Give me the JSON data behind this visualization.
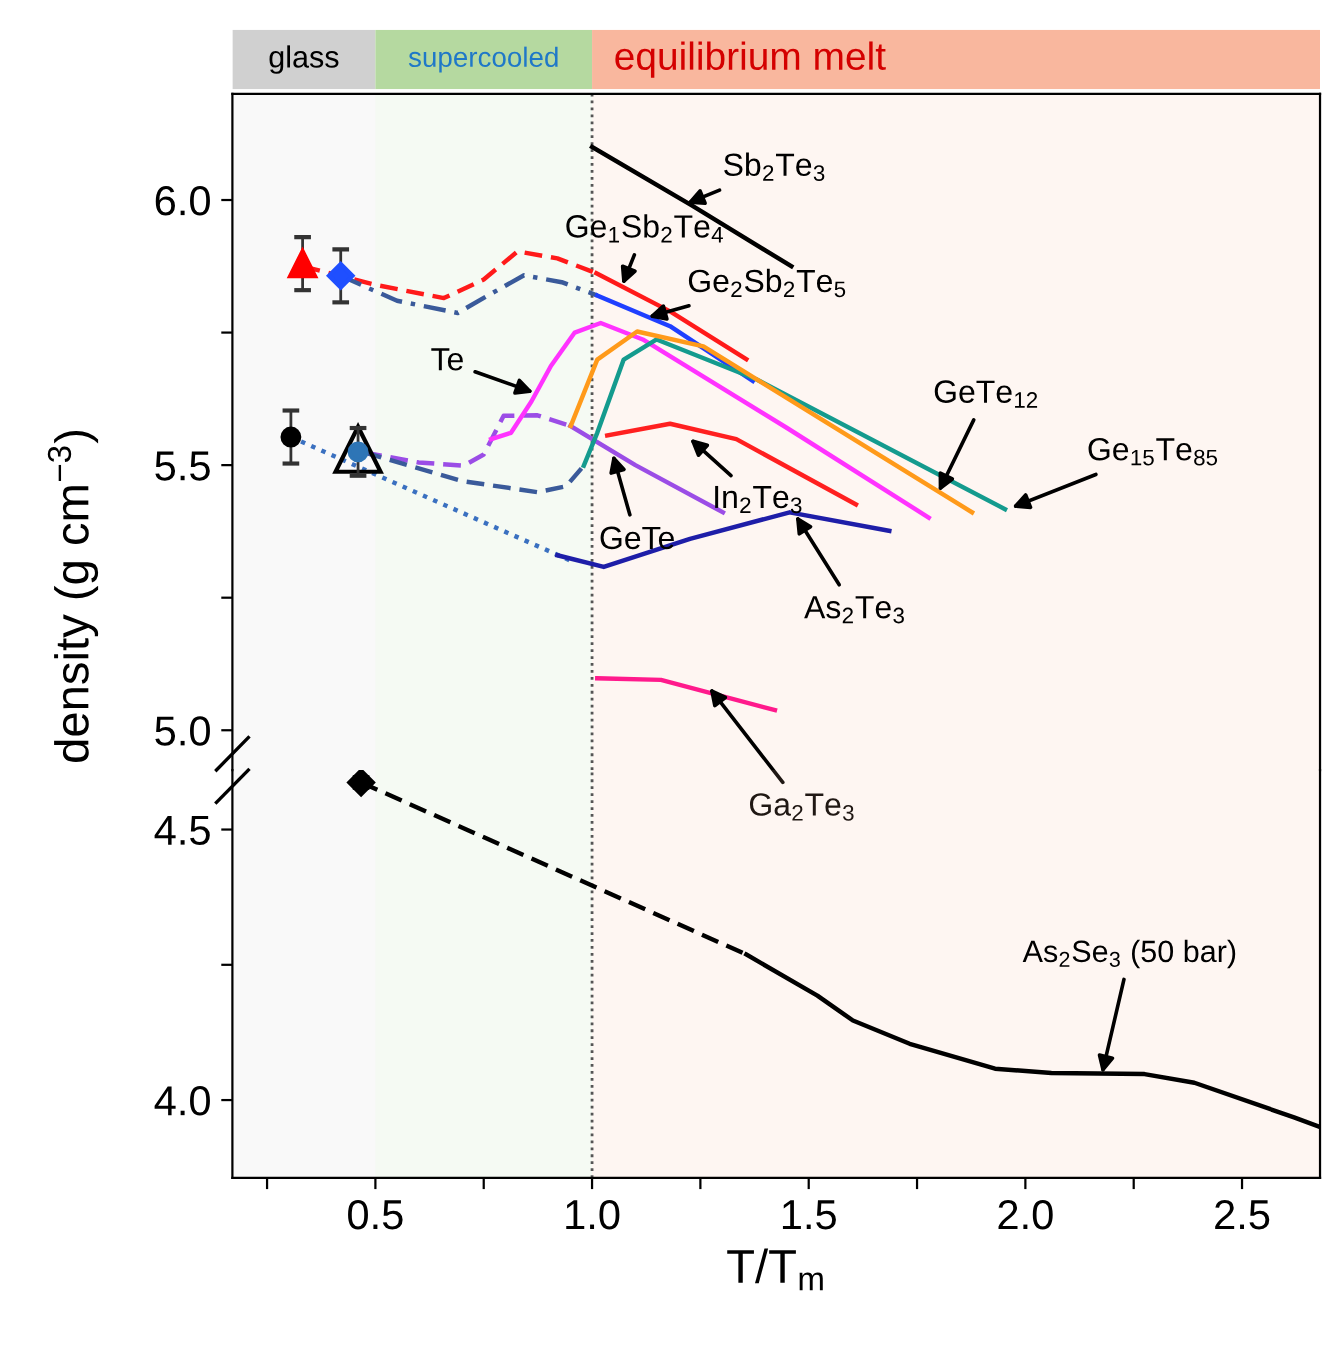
{
  "chart_data": [
    {
      "type": "line",
      "ylabel": "density (g cm$^{−3}$)",
      "xlim": [
        0.17,
        2.68
      ],
      "ylim": [
        4.925,
        6.2
      ],
      "yticks": [
        {
          "value": 5.0,
          "label": "5.0"
        },
        {
          "value": 5.25,
          "label": null
        },
        {
          "value": 5.5,
          "label": "5.5"
        },
        {
          "value": 5.75,
          "label": null
        },
        {
          "value": 6.0,
          "label": "6.0"
        }
      ],
      "tick_labels": "y",
      "grid": false,
      "bands": [
        {
          "axis": "x",
          "from": 0.17,
          "to": 0.5,
          "label": "glass",
          "color": "#d0d0d0"
        },
        {
          "axis": "x",
          "from": 0.5,
          "to": 1.0,
          "label": "supercooled",
          "color": "#b5d9a0"
        },
        {
          "axis": "x",
          "from": 1.0,
          "to": 2.68,
          "label": "equilibrium melt",
          "color": "#f9b79e"
        }
      ],
      "ref_lines": [
        {
          "axis": "x",
          "value": 1.0,
          "color": "#555555",
          "line_style": "dotted"
        }
      ],
      "series": [
        {
          "color": "#000000",
          "x": [
            1.0,
            1.23,
            1.46
          ],
          "values": [
            6.1,
            5.99,
            5.875
          ]
        },
        {
          "color": "#ff1a1a",
          "line_style": "dashed",
          "x": [
            0.332,
            0.5,
            0.658,
            0.75,
            0.828,
            0.92,
            1.01
          ],
          "values": [
            5.875,
            5.84,
            5.815,
            5.85,
            5.903,
            5.89,
            5.862
          ]
        },
        {
          "color": "#ff1a1a",
          "x": [
            1.01,
            1.18,
            1.356
          ],
          "values": [
            5.862,
            5.79,
            5.7
          ]
        },
        {
          "color": "#3a5a9a",
          "line_style": "dashdot",
          "x": [
            0.42,
            0.55,
            0.69,
            0.76,
            0.843,
            0.93,
            1.012
          ],
          "values": [
            5.857,
            5.81,
            5.787,
            5.82,
            5.858,
            5.845,
            5.82
          ]
        },
        {
          "color": "#1f3fff",
          "x": [
            1.012,
            1.18,
            1.371
          ],
          "values": [
            5.82,
            5.762,
            5.659
          ]
        },
        {
          "color": "#9b4de6",
          "line_style": "dashed",
          "x": [
            0.474,
            0.6,
            0.704,
            0.75,
            0.796,
            0.874,
            0.95
          ],
          "values": [
            5.524,
            5.505,
            5.499,
            5.52,
            5.593,
            5.594,
            5.574
          ]
        },
        {
          "color": "#9b4de6",
          "x": [
            0.95,
            1.1,
            1.302
          ],
          "values": [
            5.574,
            5.5,
            5.411
          ]
        },
        {
          "color": "#ff33ff",
          "x": [
            0.767,
            0.813,
            0.86,
            0.905,
            0.96,
            1.02,
            1.117,
            1.45,
            1.777
          ],
          "values": [
            5.549,
            5.561,
            5.62,
            5.687,
            5.75,
            5.768,
            5.737,
            5.57,
            5.401
          ]
        },
        {
          "color": "#3a5a9a",
          "line_style": "dashed",
          "x": [
            0.474,
            0.7,
            0.874,
            0.94,
            0.981
          ],
          "values": [
            5.524,
            5.47,
            5.449,
            5.46,
            5.499
          ]
        },
        {
          "color": "#149b8e",
          "x": [
            0.981,
            1.012,
            1.073,
            1.149,
            1.379,
            1.953
          ],
          "values": [
            5.499,
            5.561,
            5.699,
            5.737,
            5.662,
            5.417
          ]
        },
        {
          "color": "#ff9a1a",
          "x": [
            0.951,
            1.012,
            1.104,
            1.257,
            1.877
          ],
          "values": [
            5.574,
            5.699,
            5.752,
            5.724,
            5.411
          ]
        },
        {
          "color": "#ff2020",
          "x": [
            1.035,
            1.18,
            1.333,
            1.609
          ],
          "values": [
            5.556,
            5.578,
            5.549,
            5.426
          ]
        },
        {
          "color": "#3a70c0",
          "line_style": "dotted",
          "x": [
            0.305,
            0.95
          ],
          "values": [
            5.553,
            5.32
          ]
        },
        {
          "color": "#1e1ea8",
          "x": [
            0.92,
            1.027,
            1.226,
            1.456,
            1.686
          ],
          "values": [
            5.33,
            5.308,
            5.361,
            5.411,
            5.376
          ]
        },
        {
          "color": "#ff1a8c",
          "x": [
            1.012,
            1.159,
            1.422
          ],
          "values": [
            5.098,
            5.095,
            5.038
          ]
        },
        {
          "type": "scatter",
          "marker": "triangle",
          "color": "#ff0000",
          "x": [
            0.332
          ],
          "values": [
            5.88
          ],
          "errors": [
            0.05
          ]
        },
        {
          "type": "scatter",
          "marker": "diamond",
          "color": "#1f4fff",
          "x": [
            0.42
          ],
          "values": [
            5.857
          ],
          "errors": [
            0.05
          ]
        },
        {
          "type": "scatter",
          "marker": "circle",
          "color": "#000000",
          "x": [
            0.305
          ],
          "values": [
            5.553
          ],
          "errors": [
            0.05
          ]
        },
        {
          "type": "scatter",
          "marker": "triangle",
          "color": "#000000",
          "x": [
            0.46
          ],
          "values": [
            5.53
          ]
        },
        {
          "type": "scatter",
          "marker": "circle",
          "color": "#2e75b6",
          "x": [
            0.46
          ],
          "values": [
            5.525
          ],
          "errors": [
            0.045
          ]
        }
      ],
      "annotations": [
        {
          "text": "Sb$_{2}$Te$_{3}$",
          "x": 1.218,
          "y": 5.993
        },
        {
          "text": "Ge$_{1}$Sb$_{2}$Te$_{4}$",
          "x": 1.07,
          "y": 5.84
        },
        {
          "text": "Ge$_{2}$Sb$_{2}$Te$_{5}$",
          "x": 1.13,
          "y": 5.779
        },
        {
          "text": "Te",
          "x": 0.865,
          "y": 5.637
        },
        {
          "text": "GeTe",
          "x": 1.048,
          "y": 5.52
        },
        {
          "text": "In$_{2}$Te$_{3}$",
          "x": 1.226,
          "y": 5.55
        },
        {
          "text": "As$_{2}$Te$_{3}$",
          "x": 1.47,
          "y": 5.405
        },
        {
          "text": "GeTe$_{12}$",
          "x": 1.8,
          "y": 5.45
        },
        {
          "text": "Ge$_{15}$Te$_{85}$",
          "x": 1.969,
          "y": 5.42
        },
        {
          "text": "Ga$_{2}$Te$_{3}$",
          "x": 1.271,
          "y": 5.08
        }
      ]
    },
    {
      "type": "line",
      "xlabel": "T/T$_{m}$",
      "xlim": [
        0.17,
        2.68
      ],
      "ylim": [
        3.856,
        4.61
      ],
      "xticks": [
        {
          "value": 0.25,
          "label": null
        },
        {
          "value": 0.5,
          "label": "0.5"
        },
        {
          "value": 0.75,
          "label": null
        },
        {
          "value": 1.0,
          "label": "1.0"
        },
        {
          "value": 1.25,
          "label": null
        },
        {
          "value": 1.5,
          "label": "1.5"
        },
        {
          "value": 1.75,
          "label": null
        },
        {
          "value": 2.0,
          "label": "2.0"
        },
        {
          "value": 2.25,
          "label": null
        },
        {
          "value": 2.5,
          "label": "2.5"
        }
      ],
      "yticks": [
        {
          "value": 4.0,
          "label": "4.0"
        },
        {
          "value": 4.25,
          "label": null
        },
        {
          "value": 4.5,
          "label": "4.5"
        }
      ],
      "grid": false,
      "bands": [
        {
          "axis": "x",
          "from": 0.17,
          "to": 0.5,
          "color": "#d0d0d0"
        },
        {
          "axis": "x",
          "from": 0.5,
          "to": 1.0,
          "color": "#b5d9a0"
        },
        {
          "axis": "x",
          "from": 1.0,
          "to": 2.68,
          "color": "#f9b79e"
        }
      ],
      "ref_lines": [
        {
          "axis": "x",
          "value": 1.0,
          "color": "#555555",
          "line_style": "dotted"
        }
      ],
      "series": [
        {
          "color": "#000000",
          "line_style": "dashed",
          "x": [
            0.467,
            1.356
          ],
          "values": [
            4.587,
            4.269
          ]
        },
        {
          "color": "#000000",
          "x": [
            1.356,
            1.52,
            1.602,
            1.733,
            1.93,
            2.06,
            2.275,
            2.39,
            2.62,
            2.68
          ],
          "values": [
            4.269,
            4.193,
            4.147,
            4.104,
            4.058,
            4.05,
            4.048,
            4.032,
            3.968,
            3.95
          ]
        },
        {
          "type": "scatter",
          "marker": "diamond",
          "color": "#000000",
          "x": [
            0.467
          ],
          "values": [
            4.587
          ],
          "errors": [
            0.01
          ]
        }
      ],
      "annotations": [
        {
          "text": "As$_{2}$Se$_{3}$ (50 bar)",
          "x": 2.177,
          "y": 4.049
        }
      ]
    }
  ]
}
